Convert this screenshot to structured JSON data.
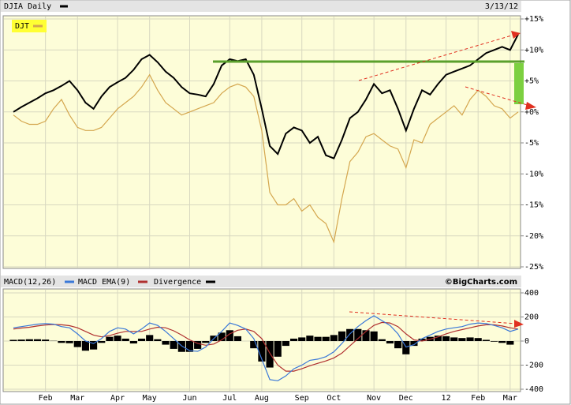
{
  "chart_data": [
    {
      "type": "line",
      "date_label": "3/13/12",
      "categories": [
        null,
        null,
        null,
        null,
        "Feb",
        null,
        null,
        null,
        "Mar",
        null,
        null,
        null,
        null,
        "Apr",
        null,
        null,
        null,
        "May",
        null,
        null,
        null,
        null,
        "Jun",
        null,
        null,
        null,
        null,
        "Jul",
        null,
        null,
        null,
        "Aug",
        null,
        null,
        null,
        null,
        "Sep",
        null,
        null,
        null,
        "Oct",
        null,
        null,
        null,
        null,
        "Nov",
        null,
        null,
        null,
        "Dec",
        null,
        null,
        null,
        null,
        "12",
        null,
        null,
        null,
        "Feb",
        null,
        null,
        null,
        "Mar",
        null
      ],
      "series": [
        {
          "name": "DJIA Daily",
          "color": "#000000",
          "values": [
            0,
            0.8,
            1.5,
            2.2,
            3.0,
            3.5,
            4.2,
            5.0,
            3.5,
            1.5,
            0.5,
            2.5,
            4.0,
            4.8,
            5.5,
            6.8,
            8.5,
            9.2,
            8.0,
            6.5,
            5.5,
            4.0,
            3.0,
            2.8,
            2.5,
            4.5,
            7.5,
            8.5,
            8.2,
            8.5,
            6.0,
            0.5,
            -5.5,
            -6.8,
            -3.5,
            -2.5,
            -3.0,
            -5.0,
            -4.0,
            -7.0,
            -7.5,
            -4.5,
            -1.0,
            0.0,
            2.0,
            4.5,
            3.0,
            3.5,
            0.5,
            -3.0,
            0.5,
            3.5,
            2.8,
            4.5,
            6.0,
            6.5,
            7.0,
            7.5,
            8.5,
            9.5,
            10.0,
            10.5,
            10.0,
            12.5
          ]
        },
        {
          "name": "DJT",
          "color": "#d4a64e",
          "values": [
            -0.5,
            -1.5,
            -2,
            -2,
            -1.5,
            0.5,
            2,
            -0.5,
            -2.5,
            -3,
            -3,
            -2.5,
            -1,
            0.5,
            1.5,
            2.5,
            4,
            6,
            3.5,
            1.5,
            0.5,
            -0.5,
            0,
            0.5,
            1,
            1.5,
            3,
            4,
            4.5,
            4,
            2.5,
            -3,
            -13,
            -15,
            -15,
            -14,
            -16,
            -15,
            -17,
            -18,
            -21,
            -14,
            -8,
            -6.5,
            -4,
            -3.5,
            -4.5,
            -5.5,
            -6,
            -9,
            -4.5,
            -5,
            -2,
            -1,
            0,
            1,
            -0.5,
            2,
            3.5,
            2.5,
            1,
            0.5,
            -1,
            0
          ]
        }
      ],
      "ylim": [
        -25,
        15
      ],
      "yticks": [
        {
          "value": 15,
          "label": "+15%"
        },
        {
          "value": 10,
          "label": "+10%"
        },
        {
          "value": 5,
          "label": "+5%"
        },
        {
          "value": 0,
          "label": "+0%"
        },
        {
          "value": -5,
          "label": "-5%"
        },
        {
          "value": -10,
          "label": "-10%"
        },
        {
          "value": -15,
          "label": "-15%"
        },
        {
          "value": -20,
          "label": "-20%"
        },
        {
          "value": -25,
          "label": "-25%"
        }
      ],
      "grid": true
    },
    {
      "type": "macd",
      "source": "©BigCharts.com",
      "series": [
        {
          "name": "MACD(12,26)",
          "color": "#3a78d8",
          "values": [
            110,
            120,
            130,
            140,
            145,
            140,
            120,
            110,
            60,
            0,
            -20,
            20,
            80,
            110,
            100,
            60,
            100,
            150,
            130,
            80,
            20,
            -40,
            -80,
            -85,
            -50,
            20,
            80,
            150,
            130,
            100,
            20,
            -150,
            -320,
            -330,
            -290,
            -230,
            -200,
            -160,
            -150,
            -130,
            -90,
            -20,
            60,
            120,
            170,
            210,
            170,
            130,
            60,
            -50,
            -30,
            20,
            50,
            80,
            100,
            110,
            120,
            140,
            150,
            145,
            130,
            110,
            80,
            100
          ]
        },
        {
          "name": "MACD EMA(9)",
          "color": "#b03030",
          "values": [
            100,
            108,
            115,
            125,
            133,
            138,
            135,
            128,
            110,
            80,
            50,
            35,
            45,
            65,
            80,
            80,
            80,
            100,
            115,
            110,
            85,
            50,
            10,
            -20,
            -35,
            -25,
            10,
            60,
            90,
            100,
            80,
            20,
            -100,
            -200,
            -250,
            -250,
            -230,
            -205,
            -185,
            -165,
            -140,
            -100,
            -40,
            20,
            80,
            130,
            155,
            150,
            120,
            60,
            10,
            0,
            15,
            35,
            60,
            80,
            95,
            110,
            125,
            135,
            135,
            125,
            110,
            100
          ]
        },
        {
          "name": "Divergence",
          "color": "#000000",
          "values": [
            10,
            12,
            15,
            15,
            12,
            2,
            -15,
            -18,
            -50,
            -80,
            -70,
            -15,
            35,
            45,
            20,
            -20,
            20,
            50,
            15,
            -30,
            -65,
            -90,
            -90,
            -65,
            -15,
            45,
            70,
            90,
            40,
            0,
            -60,
            -170,
            -220,
            -130,
            -40,
            20,
            30,
            45,
            35,
            35,
            50,
            80,
            100,
            100,
            90,
            80,
            15,
            -20,
            -60,
            -110,
            -40,
            20,
            35,
            45,
            40,
            30,
            25,
            30,
            25,
            10,
            -5,
            -15,
            -30,
            0
          ]
        }
      ],
      "ylim": [
        -400,
        400
      ],
      "yticks": [
        400,
        200,
        0,
        -200,
        -400
      ],
      "grid": true
    }
  ]
}
